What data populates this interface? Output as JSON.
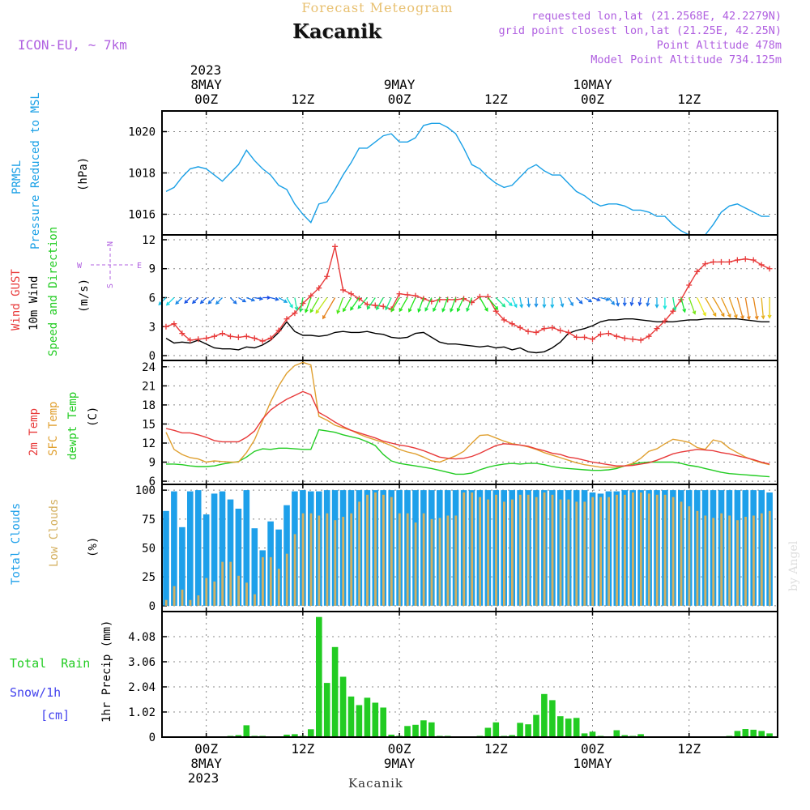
{
  "header": {
    "subtitle": "Forecast Meteogram",
    "title": "Kacanik",
    "model": "ICON-EU, ~ 7km",
    "requested": "requested lon,lat (21.2568E, 42.2279N)",
    "gridpoint": "grid point closest lon,lat (21.25E, 42.25N)",
    "altitude": "Point Altitude 478m",
    "model_altitude": "Model Point Altitude 734.125m",
    "watermark": "by Angel",
    "footer": "Kacanik"
  },
  "time_axis": {
    "year": "2023",
    "ticks": [
      {
        "label": "00Z",
        "date": "8MAY",
        "hour": 0
      },
      {
        "label": "12Z",
        "date": "",
        "hour": 12
      },
      {
        "label": "00Z",
        "date": "9MAY",
        "hour": 24
      },
      {
        "label": "12Z",
        "date": "",
        "hour": 36
      },
      {
        "label": "00Z",
        "date": "10MAY",
        "hour": 48
      },
      {
        "label": "12Z",
        "date": "",
        "hour": 60
      }
    ],
    "hour_range": [
      -5.5,
      71.0
    ]
  },
  "panel_labels": {
    "pressure": [
      "PRMSL",
      "Pressure Reduced to MSL"
    ],
    "pressure_unit": "(hPa)",
    "wind_gust": "Wind GUST",
    "wind_10m": "10m Wind",
    "wind_dir": "Speed and Direction",
    "wind_unit": "(m/s)",
    "compass": {
      "n": "N",
      "s": "S",
      "e": "E",
      "w": "W"
    },
    "temp_2m": "2m Temp",
    "temp_sfc": "SFC Temp",
    "temp_dew": "dewpt Temp",
    "temp_unit": "(C)",
    "total_clouds": "Total Clouds",
    "low_clouds": "Low Clouds",
    "cloud_unit": "(%)",
    "total_rain": "Total  Rain",
    "snow": "Snow/1h",
    "snow_unit": "[cm]",
    "precip_unit": "1hr Precip (mm)"
  },
  "colors": {
    "pressure": "#1aa0e6",
    "gust": "#e83a3a",
    "wind": "#000000",
    "temp2m": "#e83a3a",
    "sfc": "#e0a030",
    "dew": "#22cc22",
    "total_clouds": "#1ea0ea",
    "low_clouds": "#d4b060",
    "rain": "#22cc22",
    "title_orange": "#e8c070",
    "purple": "#b060e0"
  },
  "chart_data": [
    {
      "type": "line",
      "name": "PRMSL",
      "ylim": [
        1015,
        1021
      ],
      "yticks": [
        1016,
        1018,
        1020
      ],
      "x": [
        -5,
        -4,
        -3,
        -2,
        -1,
        0,
        1,
        2,
        3,
        4,
        5,
        6,
        7,
        8,
        9,
        10,
        11,
        12,
        13,
        14,
        15,
        16,
        17,
        18,
        19,
        20,
        21,
        22,
        23,
        24,
        25,
        26,
        27,
        28,
        29,
        30,
        31,
        32,
        33,
        34,
        35,
        36,
        37,
        38,
        39,
        40,
        41,
        42,
        43,
        44,
        45,
        46,
        47,
        48,
        49,
        50,
        51,
        52,
        53,
        54,
        55,
        56,
        57,
        58,
        59,
        60,
        61,
        62,
        63,
        64,
        65,
        66,
        67,
        68,
        69,
        70
      ],
      "values": [
        1017.1,
        1017.3,
        1017.8,
        1018.2,
        1018.3,
        1018.2,
        1017.9,
        1017.6,
        1018.0,
        1018.4,
        1019.1,
        1018.6,
        1018.2,
        1017.9,
        1017.4,
        1017.2,
        1016.5,
        1016.0,
        1015.6,
        1016.5,
        1016.6,
        1017.2,
        1017.9,
        1018.5,
        1019.2,
        1019.2,
        1019.5,
        1019.8,
        1019.9,
        1019.5,
        1019.5,
        1019.7,
        1020.3,
        1020.4,
        1020.4,
        1020.2,
        1019.9,
        1019.2,
        1018.4,
        1018.2,
        1017.8,
        1017.5,
        1017.3,
        1017.4,
        1017.8,
        1018.2,
        1018.4,
        1018.1,
        1017.9,
        1017.9,
        1017.5,
        1017.1,
        1016.9,
        1016.6,
        1016.4,
        1016.5,
        1016.5,
        1016.4,
        1016.2,
        1016.2,
        1016.1,
        1015.9,
        1015.9,
        1015.5,
        1015.2,
        1015.0,
        1014.9,
        1015.0,
        1015.5,
        1016.1,
        1016.4,
        1016.5,
        1016.3,
        1016.1,
        1015.9,
        1015.9
      ]
    },
    {
      "type": "line",
      "name": "Wind",
      "ylim": [
        -0.5,
        12.5
      ],
      "yticks": [
        0,
        3,
        6,
        9,
        12
      ],
      "x": [
        -5,
        -4,
        -3,
        -2,
        -1,
        0,
        1,
        2,
        3,
        4,
        5,
        6,
        7,
        8,
        9,
        10,
        11,
        12,
        13,
        14,
        15,
        16,
        17,
        18,
        19,
        20,
        21,
        22,
        23,
        24,
        25,
        26,
        27,
        28,
        29,
        30,
        31,
        32,
        33,
        34,
        35,
        36,
        37,
        38,
        39,
        40,
        41,
        42,
        43,
        44,
        45,
        46,
        47,
        48,
        49,
        50,
        51,
        52,
        53,
        54,
        55,
        56,
        57,
        58,
        59,
        60,
        61,
        62,
        63,
        64,
        65,
        66,
        67,
        68,
        69,
        70
      ],
      "gust": [
        3.0,
        3.3,
        2.3,
        1.6,
        1.7,
        1.8,
        2.0,
        2.3,
        2.0,
        1.9,
        2.0,
        1.8,
        1.5,
        1.8,
        2.6,
        3.8,
        4.4,
        5.4,
        6.2,
        7.0,
        8.2,
        11.3,
        6.8,
        6.4,
        5.9,
        5.3,
        5.2,
        5.1,
        4.8,
        6.4,
        6.3,
        6.2,
        5.9,
        5.6,
        5.8,
        5.8,
        5.8,
        5.9,
        5.5,
        6.1,
        6.1,
        4.6,
        3.7,
        3.3,
        2.9,
        2.5,
        2.4,
        2.8,
        2.9,
        2.6,
        2.4,
        1.9,
        1.9,
        1.7,
        2.2,
        2.3,
        2.0,
        1.8,
        1.7,
        1.6,
        2.0,
        2.8,
        3.6,
        4.6,
        5.8,
        7.3,
        8.7,
        9.5,
        9.7,
        9.7,
        9.7,
        9.9,
        10.0,
        9.9,
        9.4,
        9.0
      ],
      "wind": [
        1.8,
        1.3,
        1.4,
        1.3,
        1.6,
        1.2,
        0.8,
        0.7,
        0.7,
        0.6,
        0.9,
        0.8,
        1.1,
        1.6,
        2.4,
        3.5,
        2.5,
        2.1,
        2.1,
        2.0,
        2.1,
        2.4,
        2.5,
        2.4,
        2.4,
        2.5,
        2.3,
        2.2,
        1.9,
        1.8,
        1.9,
        2.3,
        2.4,
        1.9,
        1.4,
        1.2,
        1.2,
        1.1,
        1.0,
        0.9,
        1.0,
        0.8,
        0.9,
        0.6,
        0.8,
        0.4,
        0.3,
        0.4,
        0.8,
        1.4,
        2.3,
        2.6,
        2.8,
        3.1,
        3.5,
        3.7,
        3.7,
        3.8,
        3.8,
        3.7,
        3.6,
        3.5,
        3.5,
        3.5,
        3.6,
        3.7,
        3.7,
        3.8,
        3.8,
        3.8,
        3.8,
        3.8,
        3.7,
        3.6,
        3.5,
        3.5
      ],
      "dir": [
        45,
        45,
        45,
        45,
        45,
        45,
        45,
        45,
        315,
        300,
        290,
        280,
        270,
        285,
        300,
        330,
        350,
        10,
        20,
        30,
        35,
        30,
        20,
        30,
        35,
        40,
        35,
        30,
        25,
        30,
        30,
        25,
        20,
        25,
        25,
        20,
        20,
        25,
        20,
        330,
        320,
        315,
        315,
        335,
        350,
        355,
        0,
        0,
        0,
        345,
        330,
        315,
        300,
        290,
        285,
        320,
        350,
        0,
        10,
        10,
        10,
        0,
        0,
        350,
        345,
        340,
        335,
        330,
        330,
        335,
        340,
        345,
        350,
        350,
        355,
        0
      ]
    },
    {
      "type": "line",
      "name": "Temperature",
      "ylim": [
        5.5,
        25.0
      ],
      "yticks": [
        6,
        9,
        12,
        15,
        18,
        21,
        24
      ],
      "x": [
        -5,
        -4,
        -3,
        -2,
        -1,
        0,
        1,
        2,
        3,
        4,
        5,
        6,
        7,
        8,
        9,
        10,
        11,
        12,
        13,
        14,
        15,
        16,
        17,
        18,
        19,
        20,
        21,
        22,
        23,
        24,
        25,
        26,
        27,
        28,
        29,
        30,
        31,
        32,
        33,
        34,
        35,
        36,
        37,
        38,
        39,
        40,
        41,
        42,
        43,
        44,
        45,
        46,
        47,
        48,
        49,
        50,
        51,
        52,
        53,
        54,
        55,
        56,
        57,
        58,
        59,
        60,
        61,
        62,
        63,
        64,
        65,
        66,
        67,
        68,
        69,
        70
      ],
      "t2m": [
        14.3,
        14.0,
        13.6,
        13.6,
        13.3,
        12.9,
        12.4,
        12.2,
        12.2,
        12.2,
        12.9,
        13.9,
        15.8,
        17.2,
        18.1,
        18.9,
        19.5,
        20.1,
        19.6,
        16.8,
        16.1,
        15.3,
        14.6,
        14.0,
        13.6,
        13.2,
        12.8,
        12.3,
        12.0,
        11.7,
        11.5,
        11.2,
        10.8,
        10.3,
        9.8,
        9.6,
        9.5,
        9.6,
        9.9,
        10.4,
        11.0,
        11.6,
        11.9,
        11.8,
        11.7,
        11.5,
        11.1,
        10.8,
        10.4,
        10.2,
        9.8,
        9.6,
        9.3,
        9.0,
        8.8,
        8.6,
        8.4,
        8.4,
        8.5,
        8.7,
        8.9,
        9.3,
        9.8,
        10.3,
        10.6,
        10.8,
        11.0,
        10.9,
        10.8,
        10.5,
        10.3,
        10.0,
        9.7,
        9.4,
        9.0,
        8.7
      ],
      "sfc": [
        13.7,
        11.0,
        10.2,
        9.7,
        9.5,
        9.0,
        9.2,
        9.1,
        9.0,
        9.0,
        10.5,
        12.5,
        15.5,
        18.5,
        21.0,
        23.0,
        24.2,
        24.7,
        24.3,
        16.2,
        15.6,
        14.8,
        14.4,
        14.0,
        13.4,
        12.9,
        12.5,
        12.1,
        11.6,
        11.0,
        10.6,
        10.3,
        9.8,
        9.2,
        9.0,
        9.5,
        10.0,
        10.7,
        12.0,
        13.2,
        13.3,
        12.8,
        12.3,
        11.9,
        11.7,
        11.4,
        11.0,
        10.5,
        10.1,
        9.7,
        9.3,
        8.9,
        8.6,
        8.4,
        8.2,
        8.2,
        8.2,
        8.4,
        8.8,
        9.6,
        10.7,
        11.1,
        11.9,
        12.6,
        12.4,
        12.1,
        11.3,
        11.0,
        12.5,
        12.2,
        11.2,
        10.5,
        9.8,
        9.3,
        8.9,
        8.6
      ],
      "dew": [
        8.7,
        8.7,
        8.6,
        8.4,
        8.3,
        8.3,
        8.4,
        8.7,
        8.9,
        9.1,
        9.8,
        10.7,
        11.1,
        11.0,
        11.2,
        11.2,
        11.1,
        11.0,
        11.0,
        14.1,
        13.9,
        13.7,
        13.3,
        13.0,
        12.7,
        12.2,
        11.6,
        10.2,
        9.2,
        8.8,
        8.6,
        8.4,
        8.2,
        8.0,
        7.7,
        7.4,
        7.1,
        7.1,
        7.3,
        7.8,
        8.2,
        8.5,
        8.7,
        8.8,
        8.7,
        8.8,
        8.8,
        8.6,
        8.3,
        8.1,
        8.0,
        7.9,
        7.8,
        7.7,
        7.7,
        7.8,
        8.0,
        8.4,
        8.7,
        8.9,
        9.0,
        9.0,
        9.0,
        9.0,
        8.8,
        8.5,
        8.3,
        8.0,
        7.7,
        7.4,
        7.2,
        7.1,
        7.0,
        6.9,
        6.8,
        6.7
      ]
    },
    {
      "type": "bar",
      "name": "Clouds",
      "ylim": [
        -5,
        105
      ],
      "yticks": [
        0,
        25,
        50,
        75,
        100
      ],
      "x": [
        -5,
        -4,
        -3,
        -2,
        -1,
        0,
        1,
        2,
        3,
        4,
        5,
        6,
        7,
        8,
        9,
        10,
        11,
        12,
        13,
        14,
        15,
        16,
        17,
        18,
        19,
        20,
        21,
        22,
        23,
        24,
        25,
        26,
        27,
        28,
        29,
        30,
        31,
        32,
        33,
        34,
        35,
        36,
        37,
        38,
        39,
        40,
        41,
        42,
        43,
        44,
        45,
        46,
        47,
        48,
        49,
        50,
        51,
        52,
        53,
        54,
        55,
        56,
        57,
        58,
        59,
        60,
        61,
        62,
        63,
        64,
        65,
        66,
        67,
        68,
        69,
        70
      ],
      "total": [
        82,
        99,
        68,
        99,
        100,
        79,
        97,
        99,
        92,
        84,
        100,
        67,
        48,
        73,
        66,
        87,
        99,
        100,
        99,
        99,
        100,
        100,
        100,
        100,
        100,
        100,
        100,
        100,
        100,
        100,
        100,
        100,
        100,
        100,
        100,
        100,
        100,
        100,
        100,
        100,
        100,
        100,
        100,
        100,
        100,
        100,
        100,
        100,
        100,
        100,
        100,
        100,
        100,
        98,
        97,
        99,
        99,
        100,
        100,
        100,
        100,
        100,
        100,
        100,
        100,
        100,
        100,
        100,
        100,
        100,
        100,
        100,
        100,
        100,
        100,
        98
      ],
      "low": [
        5,
        17,
        14,
        5,
        9,
        24,
        21,
        38,
        38,
        26,
        20,
        10,
        42,
        42,
        32,
        45,
        62,
        80,
        80,
        78,
        80,
        74,
        77,
        80,
        90,
        96,
        98,
        96,
        94,
        80,
        80,
        72,
        80,
        75,
        76,
        78,
        78,
        98,
        98,
        94,
        92,
        96,
        90,
        92,
        96,
        96,
        94,
        98,
        96,
        92,
        92,
        90,
        90,
        94,
        94,
        94,
        96,
        96,
        98,
        98,
        97,
        96,
        96,
        94,
        90,
        86,
        82,
        78,
        76,
        80,
        78,
        74,
        77,
        78,
        80,
        82
      ]
    },
    {
      "type": "bar",
      "name": "1hr Precip",
      "ylim": [
        0,
        5.1
      ],
      "yticks": [
        0,
        1.02,
        2.04,
        3.06,
        4.08
      ],
      "x": [
        -5,
        -4,
        -3,
        -2,
        -1,
        0,
        1,
        2,
        3,
        4,
        5,
        6,
        7,
        8,
        9,
        10,
        11,
        12,
        13,
        14,
        15,
        16,
        17,
        18,
        19,
        20,
        21,
        22,
        23,
        24,
        25,
        26,
        27,
        28,
        29,
        30,
        31,
        32,
        33,
        34,
        35,
        36,
        37,
        38,
        39,
        40,
        41,
        42,
        43,
        44,
        45,
        46,
        47,
        48,
        49,
        50,
        51,
        52,
        53,
        54,
        55,
        56,
        57,
        58,
        59,
        60,
        61,
        62,
        63,
        64,
        65,
        66,
        67,
        68,
        69,
        70
      ],
      "rain": [
        0,
        0,
        0,
        0,
        0,
        0,
        0,
        0,
        0.05,
        0.08,
        0.48,
        0.05,
        0.05,
        0.03,
        0.03,
        0.1,
        0.12,
        0.05,
        0.32,
        4.88,
        2.2,
        3.66,
        2.45,
        1.65,
        1.3,
        1.6,
        1.4,
        1.2,
        0.1,
        0.05,
        0.45,
        0.5,
        0.68,
        0.6,
        0.05,
        0.05,
        0,
        0,
        0,
        0.05,
        0.38,
        0.6,
        0.05,
        0.08,
        0.58,
        0.52,
        0.9,
        1.75,
        1.5,
        0.85,
        0.75,
        0.78,
        0.15,
        0.22,
        0.05,
        0,
        0.28,
        0.08,
        0.05,
        0.12,
        0,
        0,
        0,
        0,
        0,
        0,
        0,
        0,
        0,
        0,
        0.05,
        0.25,
        0.33,
        0.3,
        0.25,
        0.15
      ],
      "snow": []
    }
  ]
}
